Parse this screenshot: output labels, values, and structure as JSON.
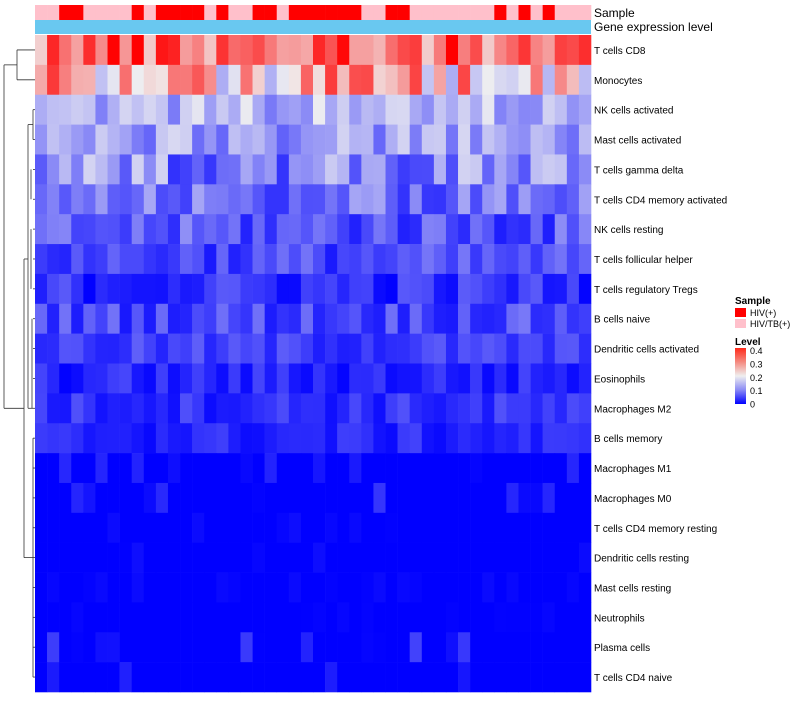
{
  "chart_data": {
    "type": "heatmap",
    "title": "",
    "n_columns": 46,
    "rows": [
      "T cells CD8",
      "Monocytes",
      "NK cells activated",
      "Mast cells activated",
      "T cells gamma delta",
      "T cells CD4 memory activated",
      "NK cells resting",
      "T cells follicular helper",
      "T cells regulatory  Tregs",
      "B cells naive",
      "Dendritic cells activated",
      "Eosinophils",
      "Macrophages M2",
      "B cells memory",
      "Macrophages M1",
      "Macrophages M0",
      "T cells CD4 memory resting",
      "Dendritic cells resting",
      "Mast cells resting",
      "Neutrophils",
      "Plasma cells",
      "T cells CD4 naive"
    ],
    "annotations": {
      "sample_label": "Sample",
      "gene_label": "Gene expression level",
      "sample_colors": {
        "HIV(+)": "#ff0000",
        "HIV/TB(+)": "#ffc0cb"
      },
      "gene_color": "#69c8f0",
      "sample_groups": [
        "HIV/TB(+)",
        "HIV/TB(+)",
        "HIV(+)",
        "HIV(+)",
        "HIV/TB(+)",
        "HIV/TB(+)",
        "HIV/TB(+)",
        "HIV/TB(+)",
        "HIV(+)",
        "HIV/TB(+)",
        "HIV(+)",
        "HIV(+)",
        "HIV(+)",
        "HIV(+)",
        "HIV/TB(+)",
        "HIV(+)",
        "HIV/TB(+)",
        "HIV/TB(+)",
        "HIV(+)",
        "HIV(+)",
        "HIV/TB(+)",
        "HIV(+)",
        "HIV(+)",
        "HIV(+)",
        "HIV(+)",
        "HIV(+)",
        "HIV(+)",
        "HIV/TB(+)",
        "HIV/TB(+)",
        "HIV(+)",
        "HIV(+)",
        "HIV/TB(+)",
        "HIV/TB(+)",
        "HIV/TB(+)",
        "HIV/TB(+)",
        "HIV/TB(+)",
        "HIV/TB(+)",
        "HIV/TB(+)",
        "HIV(+)",
        "HIV/TB(+)",
        "HIV(+)",
        "HIV/TB(+)",
        "HIV(+)",
        "HIV/TB(+)",
        "HIV/TB(+)",
        "HIV/TB(+)"
      ]
    },
    "legend": {
      "sample_title": "Sample",
      "sample_entries": [
        "HIV(+)",
        "HIV/TB(+)"
      ],
      "level_title": "Level",
      "level_ticks": [
        "0.4",
        "0.3",
        "0.2",
        "0.1",
        "0"
      ],
      "level_range": [
        0,
        0.42
      ],
      "placement": "right"
    },
    "color_scale": {
      "low": "#0000ff",
      "mid": "#f0f0f0",
      "high": "#ff0000",
      "midpoint": 0.2
    },
    "row_means": [
      0.33,
      0.26,
      0.15,
      0.13,
      0.11,
      0.09,
      0.07,
      0.06,
      0.04,
      0.06,
      0.05,
      0.03,
      0.04,
      0.03,
      0.015,
      0.02,
      0.004,
      0.005,
      0.003,
      0.002,
      0.02,
      0.01
    ],
    "row_spread": [
      0.1,
      0.12,
      0.05,
      0.05,
      0.07,
      0.05,
      0.05,
      0.04,
      0.04,
      0.04,
      0.03,
      0.03,
      0.03,
      0.025,
      0.02,
      0.025,
      0.008,
      0.01,
      0.006,
      0.004,
      0.035,
      0.025
    ]
  }
}
